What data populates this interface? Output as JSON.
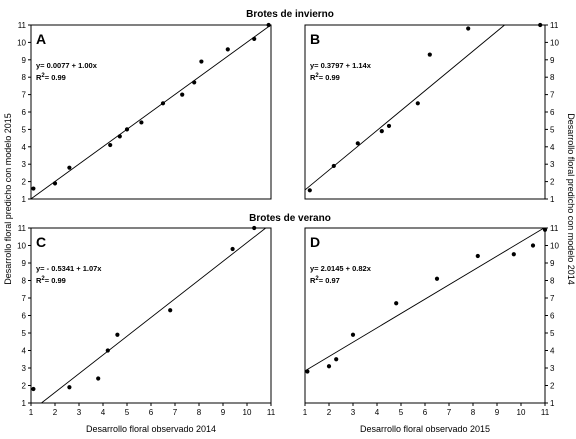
{
  "figure": {
    "section_titles": [
      "Brotes de invierno",
      "Brotes de verano"
    ],
    "left_ylabel": "Desarrollo floral predicho con modelo 2015",
    "right_ylabel": "Desarrollo floral predicho con modelo 2014"
  },
  "chart_data": [
    {
      "type": "scatter",
      "panel": "A",
      "section": "Brotes de invierno",
      "equation": "y= 0.0077 + 1.00x",
      "r2_label": "R",
      "r2_sup": "2",
      "r2_value": "= 0.99",
      "xlim": [
        1,
        11
      ],
      "ylim": [
        1,
        11
      ],
      "x_ticks": [],
      "y_ticks": [
        1,
        2,
        3,
        4,
        5,
        6,
        7,
        8,
        9,
        10,
        11
      ],
      "y_tick_side": "left",
      "fit": {
        "intercept": 0.0077,
        "slope": 1.0
      },
      "points": [
        {
          "x": 1.1,
          "y": 1.6
        },
        {
          "x": 2.0,
          "y": 1.9
        },
        {
          "x": 2.6,
          "y": 2.8
        },
        {
          "x": 4.3,
          "y": 4.1
        },
        {
          "x": 4.7,
          "y": 4.6
        },
        {
          "x": 5.0,
          "y": 5.0
        },
        {
          "x": 5.6,
          "y": 5.4
        },
        {
          "x": 6.5,
          "y": 6.5
        },
        {
          "x": 7.3,
          "y": 7.0
        },
        {
          "x": 7.8,
          "y": 7.7
        },
        {
          "x": 8.1,
          "y": 8.9
        },
        {
          "x": 9.2,
          "y": 9.6
        },
        {
          "x": 10.3,
          "y": 10.2
        },
        {
          "x": 10.9,
          "y": 11.0
        }
      ]
    },
    {
      "type": "scatter",
      "panel": "B",
      "section": "Brotes de invierno",
      "equation": "y= 0.3797 + 1.14x",
      "r2_label": "R",
      "r2_sup": "2",
      "r2_value": "= 0.99",
      "xlim": [
        1,
        11
      ],
      "ylim": [
        1,
        11
      ],
      "x_ticks": [],
      "y_ticks": [
        1,
        2,
        3,
        4,
        5,
        6,
        7,
        8,
        9,
        10,
        11
      ],
      "y_tick_side": "right",
      "fit": {
        "intercept": 0.3797,
        "slope": 1.14
      },
      "points": [
        {
          "x": 1.2,
          "y": 1.5
        },
        {
          "x": 2.2,
          "y": 2.9
        },
        {
          "x": 3.2,
          "y": 4.2
        },
        {
          "x": 4.2,
          "y": 4.9
        },
        {
          "x": 4.5,
          "y": 5.2
        },
        {
          "x": 5.7,
          "y": 6.5
        },
        {
          "x": 6.2,
          "y": 9.3
        },
        {
          "x": 7.8,
          "y": 10.8
        },
        {
          "x": 10.8,
          "y": 11.0
        }
      ]
    },
    {
      "type": "scatter",
      "panel": "C",
      "section": "Brotes de verano",
      "equation": "y= - 0.5341 + 1.07x",
      "r2_label": "R",
      "r2_sup": "2",
      "r2_value": "= 0.99",
      "xlim": [
        1,
        11
      ],
      "ylim": [
        1,
        11
      ],
      "x_ticks": [
        1,
        2,
        3,
        4,
        5,
        6,
        7,
        8,
        9,
        10,
        11
      ],
      "y_ticks": [
        1,
        2,
        3,
        4,
        5,
        6,
        7,
        8,
        9,
        10,
        11
      ],
      "y_tick_side": "left",
      "xlabel": "Desarrollo floral observado 2014",
      "fit": {
        "intercept": -0.5341,
        "slope": 1.07
      },
      "points": [
        {
          "x": 1.1,
          "y": 1.8
        },
        {
          "x": 2.6,
          "y": 1.9
        },
        {
          "x": 3.8,
          "y": 2.4
        },
        {
          "x": 4.2,
          "y": 4.0
        },
        {
          "x": 4.6,
          "y": 4.9
        },
        {
          "x": 6.8,
          "y": 6.3
        },
        {
          "x": 9.4,
          "y": 9.8
        },
        {
          "x": 10.3,
          "y": 11.0
        }
      ]
    },
    {
      "type": "scatter",
      "panel": "D",
      "section": "Brotes de verano",
      "equation": "y= 2.0145 + 0.82x",
      "r2_label": "R",
      "r2_sup": "2",
      "r2_value": "= 0.97",
      "xlim": [
        1,
        11
      ],
      "ylim": [
        1,
        11
      ],
      "x_ticks": [
        1,
        2,
        3,
        4,
        5,
        6,
        7,
        8,
        9,
        10,
        11
      ],
      "y_ticks": [
        1,
        2,
        3,
        4,
        5,
        6,
        7,
        8,
        9,
        10,
        11
      ],
      "y_tick_side": "right",
      "xlabel": "Desarrollo floral observado 2015",
      "fit": {
        "intercept": 2.0145,
        "slope": 0.82
      },
      "points": [
        {
          "x": 1.1,
          "y": 2.8
        },
        {
          "x": 2.0,
          "y": 3.1
        },
        {
          "x": 2.3,
          "y": 3.5
        },
        {
          "x": 3.0,
          "y": 4.9
        },
        {
          "x": 4.8,
          "y": 6.7
        },
        {
          "x": 6.5,
          "y": 8.1
        },
        {
          "x": 8.2,
          "y": 9.4
        },
        {
          "x": 9.7,
          "y": 9.5
        },
        {
          "x": 10.5,
          "y": 10.0
        },
        {
          "x": 11.0,
          "y": 10.9
        }
      ]
    }
  ]
}
